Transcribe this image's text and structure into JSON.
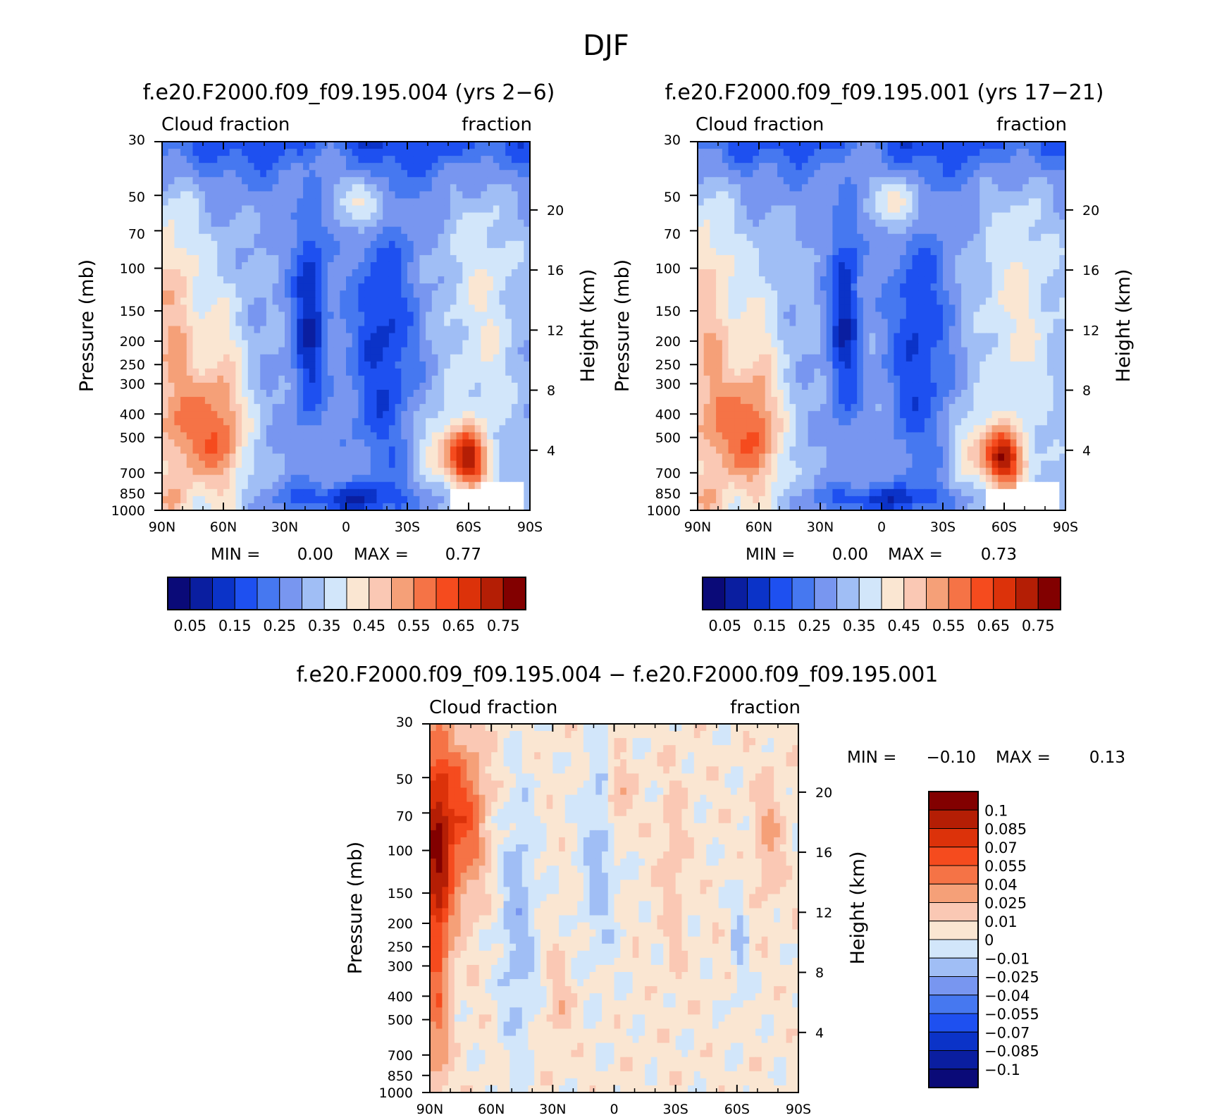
{
  "figure": {
    "title": "DJF"
  },
  "chart_data": [
    {
      "type": "heatmap",
      "title": "f.e20.F2000.f09_f09.195.004 (yrs 2-6)",
      "subtitle_left": "Cloud fraction",
      "subtitle_right": "fraction",
      "ylabel": "Pressure (mb)",
      "ylabel_right": "Height (km)",
      "x_ticks": [
        "90N",
        "60N",
        "30N",
        "0",
        "30S",
        "60S",
        "90S"
      ],
      "x_values": [
        90,
        60,
        30,
        0,
        -30,
        -60,
        -90
      ],
      "xlim": [
        90,
        -90
      ],
      "y_ticks": [
        "30",
        "50",
        "70",
        "100",
        "150",
        "200",
        "250",
        "300",
        "400",
        "500",
        "700",
        "850",
        "1000"
      ],
      "y_values": [
        30,
        50,
        70,
        100,
        150,
        200,
        250,
        300,
        400,
        500,
        700,
        850,
        1000
      ],
      "ylim": [
        1000,
        30
      ],
      "height_ticks": [
        "20",
        "16",
        "12",
        "8",
        "4"
      ],
      "height_values_km": [
        20,
        16,
        12,
        8,
        4
      ],
      "stats": {
        "min_label": "MIN =",
        "min": "0.00",
        "max_label": "MAX =",
        "max": "0.77"
      },
      "colorbar": {
        "labels": [
          "0.05",
          "0.15",
          "0.25",
          "0.35",
          "0.45",
          "0.55",
          "0.65",
          "0.75"
        ],
        "levels": [
          0.05,
          0.1,
          0.15,
          0.2,
          0.25,
          0.3,
          0.35,
          0.4,
          0.45,
          0.5,
          0.55,
          0.6,
          0.65,
          0.7,
          0.75
        ],
        "colors": [
          "#0a0a78",
          "#0a1ea0",
          "#0b33c8",
          "#1e50f0",
          "#4678f0",
          "#7896f0",
          "#a0bef5",
          "#d2e6fa",
          "#fae6d2",
          "#fac8b4",
          "#f5a078",
          "#f57346",
          "#f54b1e",
          "#dc320a",
          "#b41e05",
          "#820000"
        ]
      }
    },
    {
      "type": "heatmap",
      "title": "f.e20.F2000.f09_f09.195.001 (yrs 17-21)",
      "subtitle_left": "Cloud fraction",
      "subtitle_right": "fraction",
      "ylabel": "Pressure (mb)",
      "ylabel_right": "Height (km)",
      "x_ticks": [
        "90N",
        "60N",
        "30N",
        "0",
        "30S",
        "60S",
        "90S"
      ],
      "x_values": [
        90,
        60,
        30,
        0,
        -30,
        -60,
        -90
      ],
      "xlim": [
        90,
        -90
      ],
      "y_ticks": [
        "30",
        "50",
        "70",
        "100",
        "150",
        "200",
        "250",
        "300",
        "400",
        "500",
        "700",
        "850",
        "1000"
      ],
      "y_values": [
        30,
        50,
        70,
        100,
        150,
        200,
        250,
        300,
        400,
        500,
        700,
        850,
        1000
      ],
      "ylim": [
        1000,
        30
      ],
      "height_ticks": [
        "20",
        "16",
        "12",
        "8",
        "4"
      ],
      "height_values_km": [
        20,
        16,
        12,
        8,
        4
      ],
      "stats": {
        "min_label": "MIN =",
        "min": "0.00",
        "max_label": "MAX =",
        "max": "0.73"
      },
      "colorbar": {
        "labels": [
          "0.05",
          "0.15",
          "0.25",
          "0.35",
          "0.45",
          "0.55",
          "0.65",
          "0.75"
        ],
        "levels": [
          0.05,
          0.1,
          0.15,
          0.2,
          0.25,
          0.3,
          0.35,
          0.4,
          0.45,
          0.5,
          0.55,
          0.6,
          0.65,
          0.7,
          0.75
        ],
        "colors": [
          "#0a0a78",
          "#0a1ea0",
          "#0b33c8",
          "#1e50f0",
          "#4678f0",
          "#7896f0",
          "#a0bef5",
          "#d2e6fa",
          "#fae6d2",
          "#fac8b4",
          "#f5a078",
          "#f57346",
          "#f54b1e",
          "#dc320a",
          "#b41e05",
          "#820000"
        ]
      }
    },
    {
      "type": "heatmap",
      "title": "f.e20.F2000.f09_f09.195.004 - f.e20.F2000.f09_f09.195.001",
      "subtitle_left": "Cloud fraction",
      "subtitle_right": "fraction",
      "ylabel": "Pressure (mb)",
      "ylabel_right": "Height (km)",
      "x_ticks": [
        "90N",
        "60N",
        "30N",
        "0",
        "30S",
        "60S",
        "90S"
      ],
      "x_values": [
        90,
        60,
        30,
        0,
        -30,
        -60,
        -90
      ],
      "xlim": [
        90,
        -90
      ],
      "y_ticks": [
        "30",
        "50",
        "70",
        "100",
        "150",
        "200",
        "250",
        "300",
        "400",
        "500",
        "700",
        "850",
        "1000"
      ],
      "y_values": [
        30,
        50,
        70,
        100,
        150,
        200,
        250,
        300,
        400,
        500,
        700,
        850,
        1000
      ],
      "ylim": [
        1000,
        30
      ],
      "height_ticks": [
        "20",
        "16",
        "12",
        "8",
        "4"
      ],
      "height_values_km": [
        20,
        16,
        12,
        8,
        4
      ],
      "stats": {
        "min_label": "MIN =",
        "min": "-0.10",
        "max_label": "MAX =",
        "max": "0.13"
      },
      "colorbar": {
        "labels": [
          "0.1",
          "0.085",
          "0.07",
          "0.055",
          "0.04",
          "0.025",
          "0.01",
          "0",
          "-0.01",
          "-0.025",
          "-0.04",
          "-0.055",
          "-0.07",
          "-0.085",
          "-0.1"
        ],
        "levels": [
          0.1,
          0.085,
          0.07,
          0.055,
          0.04,
          0.025,
          0.01,
          0,
          -0.01,
          -0.025,
          -0.04,
          -0.055,
          -0.07,
          -0.085,
          -0.1
        ],
        "colors": [
          "#820000",
          "#b41e05",
          "#dc320a",
          "#f54b1e",
          "#f57346",
          "#f5a078",
          "#fac8b4",
          "#fae6d2",
          "#d2e6fa",
          "#a0bef5",
          "#7896f0",
          "#4678f0",
          "#1e50f0",
          "#0b33c8",
          "#0a1ea0",
          "#0a0a78"
        ]
      }
    }
  ]
}
